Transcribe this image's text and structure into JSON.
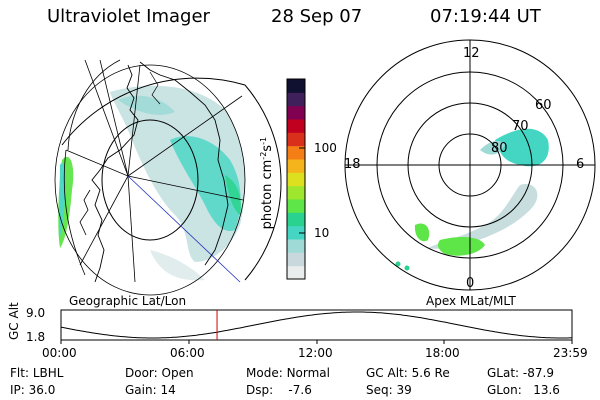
{
  "header": {
    "title": "Ultraviolet Imager",
    "date": "28 Sep 07",
    "time": "07:19:44 UT"
  },
  "colorbar": {
    "label_main": "photon cm",
    "label_exp1": "-2",
    "label_mid": "s",
    "label_exp2": "-1",
    "tick_100": "100",
    "tick_10": "10",
    "colors": [
      "#e9eded",
      "#c8d8dc",
      "#9fdad6",
      "#44d6c3",
      "#29d38f",
      "#5ee548",
      "#9fe62e",
      "#dde01f",
      "#f5b41b",
      "#f57f16",
      "#d9301b",
      "#c0001e",
      "#820051",
      "#40205a",
      "#101030"
    ]
  },
  "left_map": {
    "caption": "Geographic Lat/Lon"
  },
  "right_map": {
    "caption": "Apex MLat/MLT",
    "mlt_labels": {
      "top": "12",
      "left": "18",
      "right": "6",
      "bottom": "0"
    },
    "lat_labels": [
      "60",
      "70",
      "80"
    ]
  },
  "altitude_plot": {
    "ylabel": "GC Alt",
    "yticks": [
      "9.0",
      "1.8"
    ],
    "xticks": [
      "00:00",
      "06:00",
      "12:00",
      "18:00",
      "23:59"
    ],
    "marker_time": "07:19:44",
    "marker_color": "#d00000"
  },
  "info": {
    "flt_label": "Flt:",
    "flt_value": "LBHL",
    "ip_label": "IP:",
    "ip_value": "36.0",
    "door_label": "Door:",
    "door_value": "Open",
    "gain_label": "Gain:",
    "gain_value": "14",
    "mode_label": "Mode:",
    "mode_value": "Normal",
    "dsp_label": "Dsp:",
    "dsp_value": "-7.6",
    "gcalt_label": "GC Alt:",
    "gcalt_value": "5.6 Re",
    "seq_label": "Seq:",
    "seq_value": "39",
    "glat_label": "GLat:",
    "glat_value": "-87.9",
    "glon_label": "GLon:",
    "glon_value": "13.6"
  }
}
